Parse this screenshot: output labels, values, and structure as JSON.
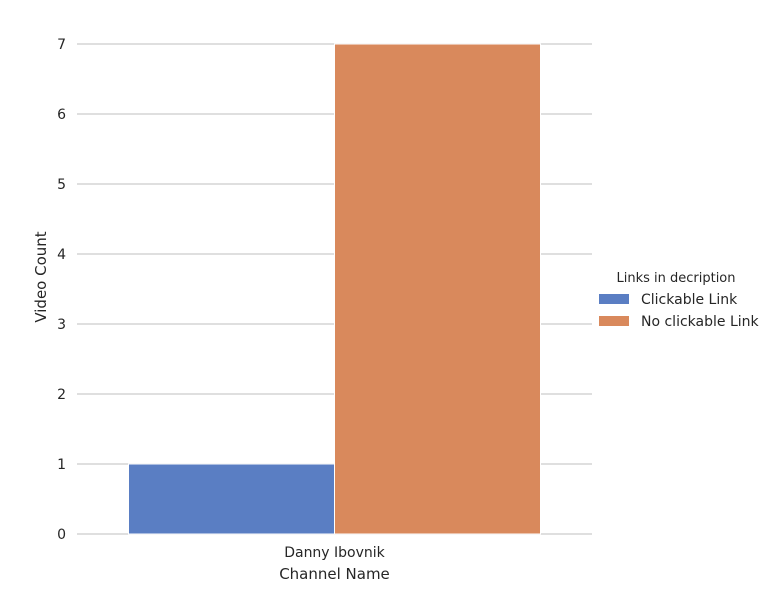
{
  "chart_data": {
    "type": "bar",
    "categories": [
      "Danny Ibovnik"
    ],
    "series": [
      {
        "name": "Clickable Link",
        "values": [
          1
        ],
        "color": "#5a7ec3"
      },
      {
        "name": "No clickable Link",
        "values": [
          7
        ],
        "color": "#d9895c"
      }
    ],
    "xlabel": "Channel Name",
    "ylabel": "Video Count",
    "ylim": [
      0,
      7
    ],
    "yticks": [
      0,
      1,
      2,
      3,
      4,
      5,
      6,
      7
    ],
    "grid": true,
    "legend": {
      "title": "Links in decription",
      "placement": "right"
    },
    "colors": {
      "grid": "#cccccc",
      "text": "#262626"
    }
  }
}
